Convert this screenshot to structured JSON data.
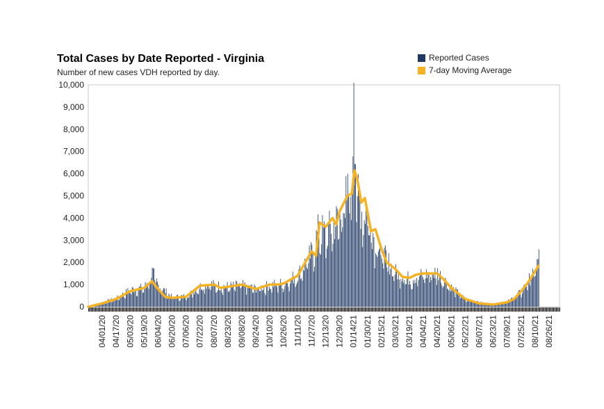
{
  "chart_data": {
    "type": "bar",
    "title": "Total Cases by Date Reported - Virginia",
    "subtitle": "Number of new cases VDH reported by day.",
    "ylim": [
      0,
      10000
    ],
    "yticks": [
      0,
      1000,
      2000,
      3000,
      4000,
      5000,
      6000,
      7000,
      8000,
      9000,
      10000
    ],
    "ytick_labels": [
      "0",
      "1,000",
      "2,000",
      "3,000",
      "4,000",
      "5,000",
      "6,000",
      "7,000",
      "8,000",
      "9,000",
      "10,000"
    ],
    "xtick_labels": [
      "04/01/20",
      "04/17/20",
      "05/03/20",
      "05/19/20",
      "06/04/20",
      "06/20/20",
      "07/06/20",
      "07/22/20",
      "08/07/20",
      "08/23/20",
      "09/08/20",
      "09/24/20",
      "10/10/20",
      "10/26/20",
      "11/11/20",
      "11/27/20",
      "12/13/20",
      "12/29/20",
      "01/14/21",
      "01/30/21",
      "02/15/21",
      "03/03/21",
      "03/19/21",
      "04/04/21",
      "04/20/21",
      "05/06/21",
      "05/22/21",
      "06/07/21",
      "06/23/21",
      "07/09/21",
      "07/25/21",
      "08/10/21",
      "08/26/21"
    ],
    "grid": false,
    "legend_position": "top-right",
    "series": [
      {
        "name": "Reported Cases",
        "color": "#1f3864",
        "date_start": "03/16/20",
        "date_end": "08/14/21",
        "key_points": [
          [
            "03/16/20",
            20
          ],
          [
            "04/01/20",
            200
          ],
          [
            "04/17/20",
            400
          ],
          [
            "05/03/20",
            800
          ],
          [
            "05/19/20",
            900
          ],
          [
            "05/28/20",
            1600
          ],
          [
            "06/04/20",
            1000
          ],
          [
            "06/20/20",
            450
          ],
          [
            "07/06/20",
            500
          ],
          [
            "07/22/20",
            950
          ],
          [
            "08/01/20",
            1100
          ],
          [
            "08/07/20",
            1000
          ],
          [
            "08/23/20",
            950
          ],
          [
            "09/08/20",
            1000
          ],
          [
            "09/24/20",
            850
          ],
          [
            "10/10/20",
            1000
          ],
          [
            "10/26/20",
            1100
          ],
          [
            "11/11/20",
            1500
          ],
          [
            "11/27/20",
            2500
          ],
          [
            "12/05/20",
            3600
          ],
          [
            "12/13/20",
            3400
          ],
          [
            "12/21/20",
            3800
          ],
          [
            "12/29/20",
            4200
          ],
          [
            "01/07/21",
            5200
          ],
          [
            "01/12/21",
            6000
          ],
          [
            "01/14/21",
            10100
          ],
          [
            "01/17/21",
            5700
          ],
          [
            "01/23/21",
            4500
          ],
          [
            "01/30/21",
            4400
          ],
          [
            "02/06/21",
            3300
          ],
          [
            "02/15/21",
            2500
          ],
          [
            "03/03/21",
            1600
          ],
          [
            "03/19/21",
            1300
          ],
          [
            "04/04/21",
            1500
          ],
          [
            "04/20/21",
            1600
          ],
          [
            "05/06/21",
            900
          ],
          [
            "05/22/21",
            350
          ],
          [
            "06/07/21",
            200
          ],
          [
            "06/23/21",
            120
          ],
          [
            "07/09/21",
            250
          ],
          [
            "07/25/21",
            700
          ],
          [
            "08/10/21",
            1700
          ],
          [
            "08/14/21",
            2300
          ]
        ]
      },
      {
        "name": "7-day Moving Average",
        "color": "#f5b323",
        "points": [
          [
            "03/16/20",
            0
          ],
          [
            "04/01/20",
            150
          ],
          [
            "04/17/20",
            350
          ],
          [
            "05/03/20",
            700
          ],
          [
            "05/19/20",
            850
          ],
          [
            "05/28/20",
            1150
          ],
          [
            "06/04/20",
            800
          ],
          [
            "06/12/20",
            450
          ],
          [
            "06/20/20",
            400
          ],
          [
            "07/06/20",
            450
          ],
          [
            "07/22/20",
            950
          ],
          [
            "08/07/20",
            1000
          ],
          [
            "08/15/20",
            850
          ],
          [
            "08/23/20",
            900
          ],
          [
            "09/08/20",
            1000
          ],
          [
            "09/24/20",
            800
          ],
          [
            "10/10/20",
            1000
          ],
          [
            "10/20/20",
            1000
          ],
          [
            "10/26/20",
            1050
          ],
          [
            "11/11/20",
            1400
          ],
          [
            "11/27/20",
            2500
          ],
          [
            "12/02/20",
            2300
          ],
          [
            "12/06/20",
            3800
          ],
          [
            "12/13/20",
            3600
          ],
          [
            "12/21/20",
            4000
          ],
          [
            "12/25/20",
            3700
          ],
          [
            "12/29/20",
            4300
          ],
          [
            "01/07/21",
            5000
          ],
          [
            "01/12/21",
            5100
          ],
          [
            "01/15/21",
            6150
          ],
          [
            "01/18/21",
            5800
          ],
          [
            "01/23/21",
            4700
          ],
          [
            "01/27/21",
            4900
          ],
          [
            "02/03/21",
            3400
          ],
          [
            "02/08/21",
            3500
          ],
          [
            "02/15/21",
            2600
          ],
          [
            "02/21/21",
            2000
          ],
          [
            "03/03/21",
            1700
          ],
          [
            "03/11/21",
            1350
          ],
          [
            "03/19/21",
            1300
          ],
          [
            "03/27/21",
            1450
          ],
          [
            "04/04/21",
            1500
          ],
          [
            "04/12/21",
            1500
          ],
          [
            "04/20/21",
            1500
          ],
          [
            "04/28/21",
            1200
          ],
          [
            "05/06/21",
            850
          ],
          [
            "05/14/21",
            600
          ],
          [
            "05/22/21",
            350
          ],
          [
            "05/30/21",
            250
          ],
          [
            "06/07/21",
            150
          ],
          [
            "06/23/21",
            100
          ],
          [
            "07/09/21",
            200
          ],
          [
            "07/17/21",
            350
          ],
          [
            "07/25/21",
            700
          ],
          [
            "08/02/21",
            1100
          ],
          [
            "08/10/21",
            1600
          ],
          [
            "08/14/21",
            1850
          ]
        ]
      }
    ]
  }
}
